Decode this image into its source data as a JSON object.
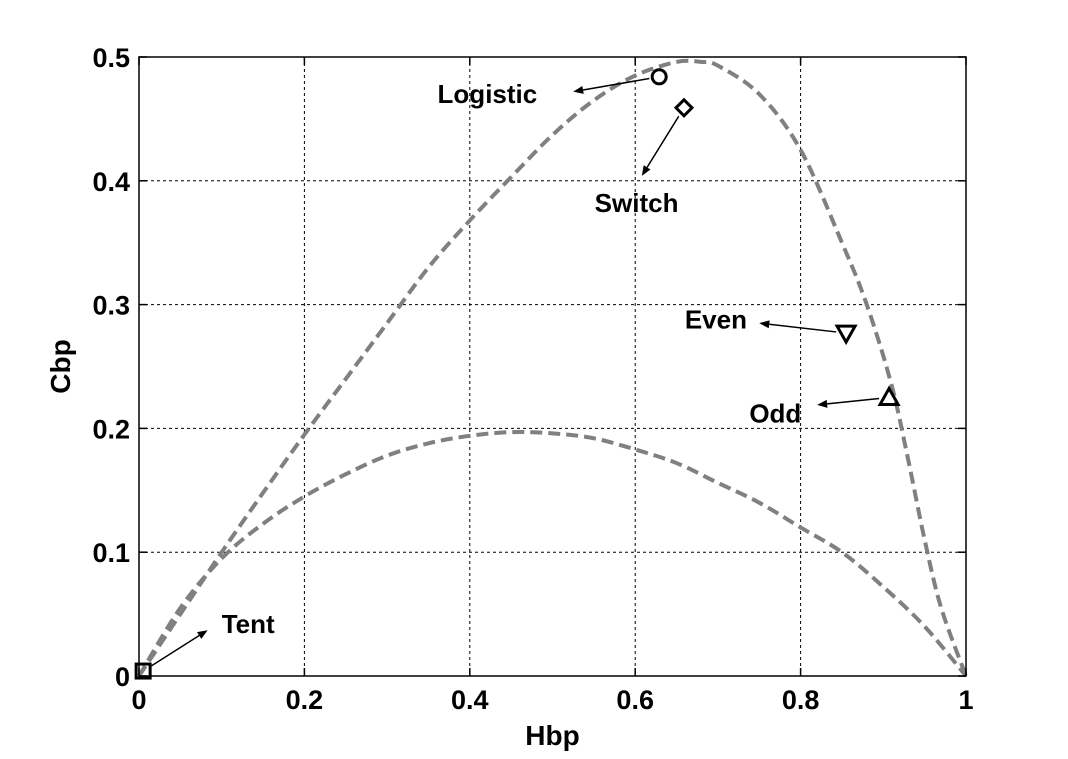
{
  "chart_data": {
    "type": "line",
    "xlabel": "Hbp",
    "ylabel": "Cbp",
    "xlim": [
      0,
      1
    ],
    "ylim": [
      0,
      0.5
    ],
    "x_ticks": [
      "0",
      "0.2",
      "0.4",
      "0.6",
      "0.8",
      "1"
    ],
    "y_ticks": [
      "0",
      "0.1",
      "0.2",
      "0.3",
      "0.4",
      "0.5"
    ],
    "grid": true,
    "series": [
      {
        "points": [
          [
            0,
            0
          ],
          [
            0.05,
            0.05
          ],
          [
            0.1,
            0.1
          ],
          [
            0.15,
            0.148
          ],
          [
            0.2,
            0.195
          ],
          [
            0.25,
            0.24
          ],
          [
            0.3,
            0.285
          ],
          [
            0.35,
            0.33
          ],
          [
            0.4,
            0.368
          ],
          [
            0.45,
            0.403
          ],
          [
            0.5,
            0.437
          ],
          [
            0.55,
            0.465
          ],
          [
            0.6,
            0.485
          ],
          [
            0.65,
            0.496
          ],
          [
            0.68,
            0.496
          ],
          [
            0.7,
            0.493
          ],
          [
            0.75,
            0.47
          ],
          [
            0.8,
            0.425
          ],
          [
            0.85,
            0.35
          ],
          [
            0.88,
            0.3
          ],
          [
            0.91,
            0.235
          ],
          [
            0.93,
            0.175
          ],
          [
            0.95,
            0.11
          ],
          [
            0.97,
            0.055
          ],
          [
            1,
            0
          ]
        ],
        "color": "#808080",
        "style": "dashed"
      },
      {
        "points": [
          [
            0,
            0
          ],
          [
            0.05,
            0.055
          ],
          [
            0.1,
            0.095
          ],
          [
            0.15,
            0.123
          ],
          [
            0.2,
            0.145
          ],
          [
            0.25,
            0.163
          ],
          [
            0.3,
            0.178
          ],
          [
            0.35,
            0.188
          ],
          [
            0.4,
            0.194
          ],
          [
            0.45,
            0.197
          ],
          [
            0.5,
            0.196
          ],
          [
            0.55,
            0.192
          ],
          [
            0.6,
            0.183
          ],
          [
            0.65,
            0.172
          ],
          [
            0.7,
            0.156
          ],
          [
            0.75,
            0.14
          ],
          [
            0.8,
            0.12
          ],
          [
            0.85,
            0.1
          ],
          [
            0.9,
            0.072
          ],
          [
            0.95,
            0.04
          ],
          [
            1,
            0
          ]
        ],
        "color": "#808080",
        "style": "dashed"
      }
    ],
    "markers": [
      {
        "label": "Logistic",
        "shape": "circle",
        "x": 0.629,
        "y": 0.484,
        "label_x": 0.361,
        "label_y": 0.47,
        "arrow_end_x": 0.525,
        "arrow_end_y": 0.472
      },
      {
        "label": "Switch",
        "shape": "diamond",
        "x": 0.659,
        "y": 0.459,
        "label_x": 0.551,
        "label_y": 0.382,
        "arrow_end_x": 0.608,
        "arrow_end_y": 0.404
      },
      {
        "label": "Even",
        "shape": "triangle-down",
        "x": 0.855,
        "y": 0.277,
        "label_x": 0.66,
        "label_y": 0.288,
        "arrow_end_x": 0.75,
        "arrow_end_y": 0.285
      },
      {
        "label": "Odd",
        "shape": "triangle-up",
        "x": 0.907,
        "y": 0.225,
        "label_x": 0.738,
        "label_y": 0.212,
        "arrow_end_x": 0.82,
        "arrow_end_y": 0.219
      },
      {
        "label": "Tent",
        "shape": "square",
        "x": 0.005,
        "y": 0.004,
        "label_x": 0.1,
        "label_y": 0.042,
        "arrow_end_x": 0.083,
        "arrow_end_y": 0.037
      }
    ]
  }
}
